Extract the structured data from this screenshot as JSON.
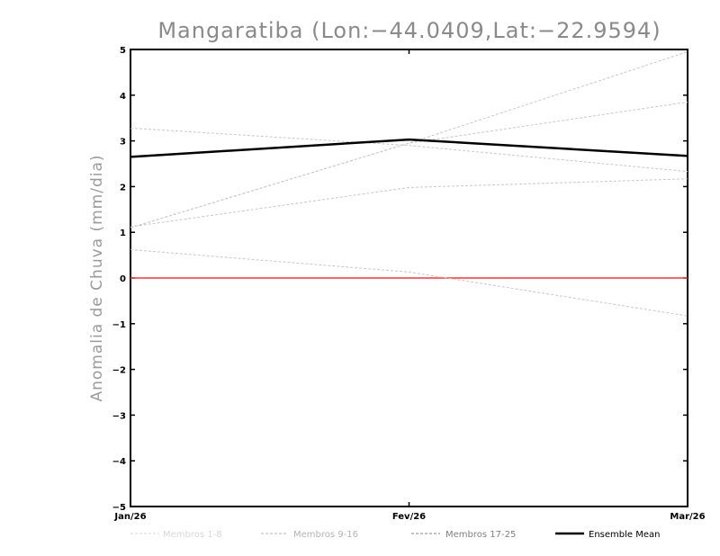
{
  "chart_data": {
    "type": "line",
    "title": "Mangaratiba (Lon:−44.0409,Lat:−22.9594)",
    "ylabel": "Anomalia de Chuva (mm/dia)",
    "xlabel": "",
    "categories": [
      "Jan/26",
      "Fev/26",
      "Mar/26"
    ],
    "ylim": [
      -5,
      5
    ],
    "yticks": [
      "5",
      "4",
      "3",
      "2",
      "1",
      "0",
      "−1",
      "−2",
      "−3",
      "−4",
      "−5"
    ],
    "ytick_values": [
      5,
      4,
      3,
      2,
      1,
      0,
      -1,
      -2,
      -3,
      -4,
      -5
    ],
    "grid": false,
    "zero_line_color": "#ff3333",
    "members": [
      {
        "values": [
          1.1,
          2.95,
          4.95
        ],
        "color": "#c8c8c8"
      },
      {
        "values": [
          1.1,
          2.95,
          3.85
        ],
        "color": "#c8c8c8"
      },
      {
        "values": [
          3.28,
          2.9,
          2.33
        ],
        "color": "#c8c8c8"
      },
      {
        "values": [
          1.12,
          1.98,
          2.17
        ],
        "color": "#c8c8c8"
      },
      {
        "values": [
          0.62,
          0.13,
          -0.83
        ],
        "color": "#c8c8c8"
      }
    ],
    "ensemble_mean": {
      "name": "Ensemble Mean",
      "values": [
        2.65,
        3.03,
        2.67
      ],
      "color": "#000000"
    },
    "legend": [
      {
        "label": "Membros 1-8",
        "color": "#d8d8d8"
      },
      {
        "label": "Membros 9-16",
        "color": "#b4b4b4"
      },
      {
        "label": "Membros 17-25",
        "color": "#808080"
      },
      {
        "label": "Ensemble Mean",
        "color": "#000000"
      }
    ]
  }
}
